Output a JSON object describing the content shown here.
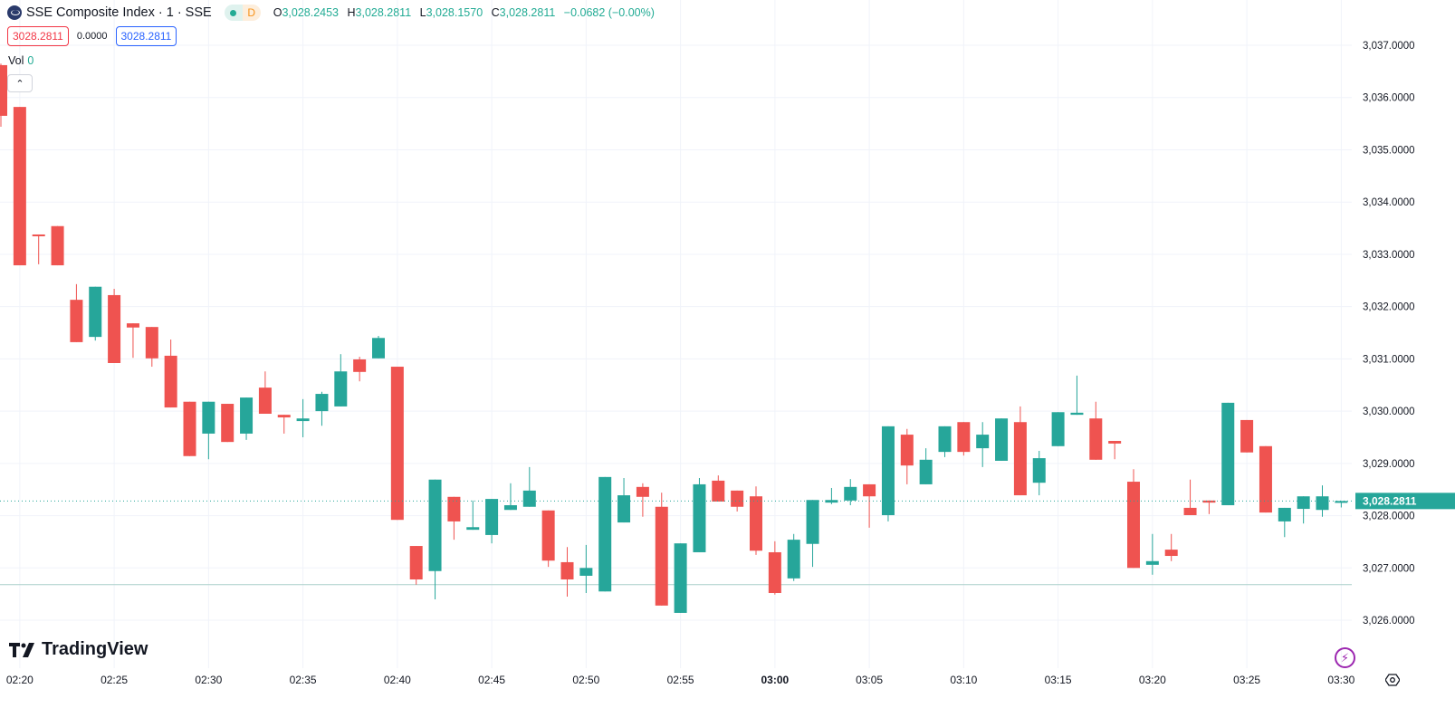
{
  "header": {
    "symbol": "SSE Composite Index · 1 · SSE",
    "badge": "D",
    "ohlc": [
      {
        "k": "O",
        "v": "3,028.2453"
      },
      {
        "k": "H",
        "v": "3,028.2811"
      },
      {
        "k": "L",
        "v": "3,028.1570"
      },
      {
        "k": "C",
        "v": "3,028.2811"
      }
    ],
    "change": "−0.0682 (−0.00%)"
  },
  "trade": {
    "sell": "3028.2811",
    "spread": "0.0000",
    "buy": "3028.2811"
  },
  "volume": {
    "label": "Vol",
    "value": "0"
  },
  "brand": "TradingView",
  "colors": {
    "up": "#26a69a",
    "down": "#ef5350",
    "grid": "#f0f3fa"
  },
  "chart_data": {
    "type": "candlestick",
    "title": "SSE Composite Index · 1 · SSE",
    "ylim": [
      3025.7,
      3037.3
    ],
    "yticks": [
      "3,026.0000",
      "3,027.0000",
      "3,028.0000",
      "3,029.0000",
      "3,030.0000",
      "3,031.0000",
      "3,032.0000",
      "3,033.0000",
      "3,034.0000",
      "3,035.0000",
      "3,036.0000",
      "3,037.0000"
    ],
    "ytick_values": [
      3026,
      3027,
      3028,
      3029,
      3030,
      3031,
      3032,
      3033,
      3034,
      3035,
      3036,
      3037
    ],
    "xticks": [
      "02:20",
      "02:25",
      "02:30",
      "02:35",
      "02:40",
      "02:45",
      "02:50",
      "02:55",
      "03:00",
      "03:05",
      "03:10",
      "03:15",
      "03:20",
      "03:25",
      "03:30"
    ],
    "last_price": "3,028.2811",
    "last_value": 3028.2811,
    "session_line": 3026.68,
    "start_time": "02:19",
    "ohlc": [
      [
        3036.62,
        3036.65,
        3035.44,
        3035.65
      ],
      [
        3035.82,
        3035.82,
        3032.79,
        3032.79
      ],
      [
        3033.38,
        3033.38,
        3032.81,
        3033.37
      ],
      [
        3033.54,
        3033.54,
        3032.79,
        3032.79
      ],
      [
        3032.13,
        3032.43,
        3031.32,
        3031.32
      ],
      [
        3031.42,
        3032.38,
        3031.35,
        3032.38
      ],
      [
        3032.22,
        3032.34,
        3030.92,
        3030.92
      ],
      [
        3031.68,
        3031.68,
        3031.02,
        3031.6
      ],
      [
        3031.61,
        3031.61,
        3030.85,
        3031.01
      ],
      [
        3031.06,
        3031.37,
        3030.07,
        3030.07
      ],
      [
        3030.18,
        3030.18,
        3029.14,
        3029.14
      ],
      [
        3029.57,
        3030.18,
        3029.08,
        3030.18
      ],
      [
        3030.14,
        3030.14,
        3029.41,
        3029.41
      ],
      [
        3029.57,
        3030.26,
        3029.45,
        3030.26
      ],
      [
        3030.45,
        3030.76,
        3029.95,
        3029.95
      ],
      [
        3029.93,
        3029.93,
        3029.57,
        3029.88
      ],
      [
        3029.81,
        3030.23,
        3029.5,
        3029.86
      ],
      [
        3030.0,
        3030.37,
        3029.72,
        3030.33
      ],
      [
        3030.09,
        3031.09,
        3030.09,
        3030.76
      ],
      [
        3030.99,
        3031.04,
        3030.57,
        3030.75
      ],
      [
        3031.01,
        3031.44,
        3031.01,
        3031.4
      ],
      [
        3030.85,
        3030.85,
        3027.92,
        3027.92
      ],
      [
        3027.42,
        3027.42,
        3026.68,
        3026.78
      ],
      [
        3026.94,
        3028.69,
        3026.4,
        3028.69
      ],
      [
        3028.36,
        3028.36,
        3027.54,
        3027.89
      ],
      [
        3027.73,
        3028.29,
        3027.73,
        3027.78
      ],
      [
        3027.63,
        3028.32,
        3027.47,
        3028.32
      ],
      [
        3028.11,
        3028.62,
        3028.11,
        3028.2
      ],
      [
        3028.17,
        3028.93,
        3028.17,
        3028.48
      ],
      [
        3028.1,
        3028.1,
        3027.02,
        3027.14
      ],
      [
        3027.11,
        3027.4,
        3026.45,
        3026.78
      ],
      [
        3026.85,
        3027.44,
        3026.52,
        3027.0
      ],
      [
        3026.55,
        3028.74,
        3026.55,
        3028.74
      ],
      [
        3027.87,
        3028.72,
        3027.87,
        3028.39
      ],
      [
        3028.55,
        3028.62,
        3027.98,
        3028.36
      ],
      [
        3028.17,
        3028.44,
        3026.28,
        3026.28
      ],
      [
        3026.14,
        3027.47,
        3026.14,
        3027.47
      ],
      [
        3027.3,
        3028.72,
        3027.3,
        3028.6
      ],
      [
        3028.67,
        3028.77,
        3028.27,
        3028.27
      ],
      [
        3028.48,
        3028.48,
        3028.08,
        3028.17
      ],
      [
        3028.37,
        3028.56,
        3027.25,
        3027.33
      ],
      [
        3027.3,
        3027.51,
        3026.49,
        3026.52
      ],
      [
        3026.8,
        3027.65,
        3026.75,
        3027.54
      ],
      [
        3027.46,
        3028.3,
        3027.02,
        3028.3
      ],
      [
        3028.25,
        3028.53,
        3028.22,
        3028.3
      ],
      [
        3028.29,
        3028.7,
        3028.2,
        3028.55
      ],
      [
        3028.6,
        3028.6,
        3027.77,
        3028.37
      ],
      [
        3028.01,
        3029.71,
        3027.89,
        3029.71
      ],
      [
        3029.55,
        3029.66,
        3028.6,
        3028.96
      ],
      [
        3028.6,
        3029.29,
        3028.6,
        3029.07
      ],
      [
        3029.22,
        3029.71,
        3029.12,
        3029.71
      ],
      [
        3029.79,
        3029.79,
        3029.15,
        3029.22
      ],
      [
        3029.29,
        3029.79,
        3028.93,
        3029.55
      ],
      [
        3029.05,
        3029.86,
        3029.05,
        3029.86
      ],
      [
        3029.79,
        3030.09,
        3028.39,
        3028.39
      ],
      [
        3028.63,
        3029.24,
        3028.39,
        3029.1
      ],
      [
        3029.33,
        3029.98,
        3029.33,
        3029.98
      ],
      [
        3029.93,
        3030.68,
        3029.93,
        3029.97
      ],
      [
        3029.86,
        3030.18,
        3029.07,
        3029.07
      ],
      [
        3029.43,
        3029.43,
        3029.08,
        3029.38
      ],
      [
        3028.65,
        3028.89,
        3027.0,
        3027.0
      ],
      [
        3027.06,
        3027.65,
        3026.87,
        3027.13
      ],
      [
        3027.35,
        3027.65,
        3027.13,
        3027.23
      ],
      [
        3028.15,
        3028.69,
        3028.01,
        3028.01
      ],
      [
        3028.29,
        3028.29,
        3028.03,
        3028.25
      ],
      [
        3028.2,
        3030.16,
        3028.2,
        3030.16
      ],
      [
        3029.83,
        3029.83,
        3029.21,
        3029.21
      ],
      [
        3029.33,
        3029.33,
        3028.06,
        3028.06
      ],
      [
        3027.89,
        3028.15,
        3027.59,
        3028.15
      ],
      [
        3028.13,
        3028.37,
        3027.85,
        3028.37
      ],
      [
        3028.11,
        3028.58,
        3027.98,
        3028.37
      ],
      [
        3028.2453,
        3028.2811,
        3028.157,
        3028.2811
      ]
    ]
  }
}
